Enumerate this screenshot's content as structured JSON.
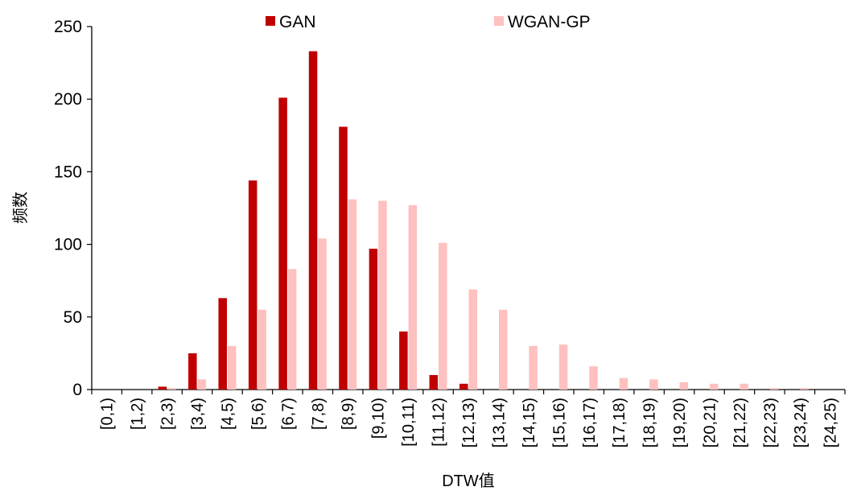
{
  "chart_data": {
    "type": "bar",
    "title": "",
    "xlabel": "DTW值",
    "ylabel": "频数",
    "ylim": [
      0,
      250
    ],
    "yticks": [
      "0",
      "50",
      "100",
      "150",
      "200",
      "250"
    ],
    "categories": [
      "[0,1)",
      "[1,2)",
      "[2,3)",
      "[3,4)",
      "[4,5)",
      "[5,6)",
      "[6,7)",
      "[7,8)",
      "[8,9)",
      "[9,10)",
      "[10,11)",
      "[11,12)",
      "[12,13)",
      "[13,14)",
      "[14,15)",
      "[15,16)",
      "[16,17)",
      "[17,18)",
      "[18,19)",
      "[19,20)",
      "[20,21)",
      "[21,22)",
      "[22,23)",
      "[23,24)",
      "[24,25)"
    ],
    "series": [
      {
        "name": "GAN",
        "color": "#c00000",
        "values": [
          0,
          0,
          2,
          25,
          63,
          144,
          201,
          233,
          181,
          97,
          40,
          10,
          4,
          0,
          0,
          0,
          0,
          0,
          0,
          0,
          0,
          0,
          0,
          0,
          0
        ]
      },
      {
        "name": "WGAN-GP",
        "color": "#ffc0c0",
        "values": [
          0,
          0,
          1,
          7,
          30,
          55,
          83,
          104,
          131,
          130,
          127,
          101,
          69,
          55,
          30,
          31,
          16,
          8,
          7,
          5,
          4,
          4,
          1,
          1,
          0
        ]
      }
    ],
    "legend": "top-center",
    "grid": false
  }
}
